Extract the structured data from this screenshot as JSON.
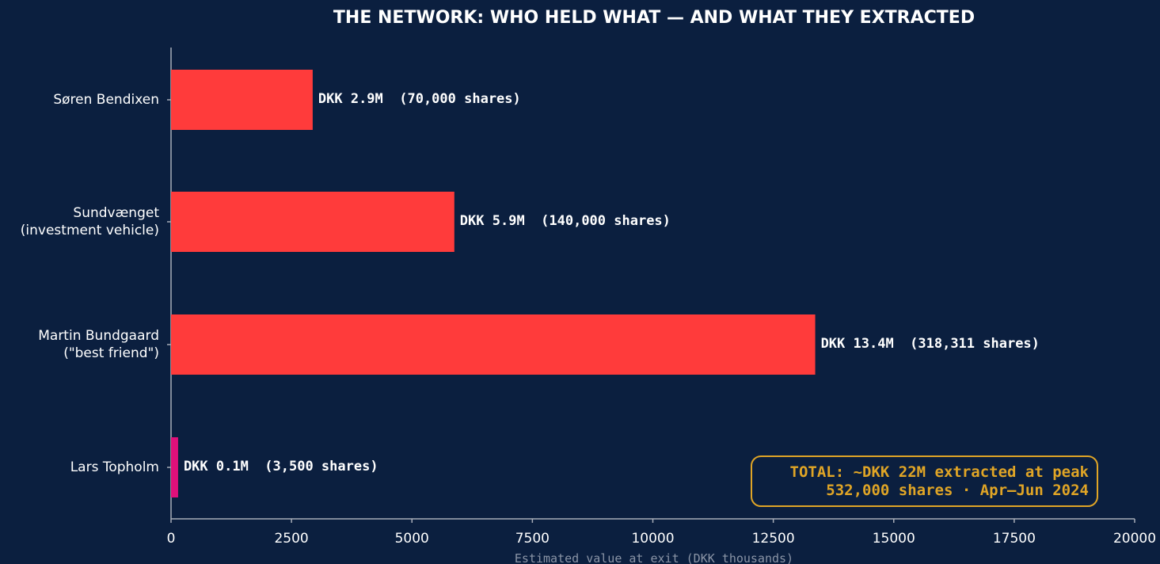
{
  "chart_data": {
    "type": "bar",
    "orientation": "horizontal",
    "title": "THE NETWORK: WHO HELD WHAT — AND WHAT THEY EXTRACTED",
    "xlabel": "Estimated value at exit (DKK thousands)",
    "ylabel": "",
    "xlim": [
      0,
      20000
    ],
    "x_ticks": [
      0,
      2500,
      5000,
      7500,
      10000,
      12500,
      15000,
      17500,
      20000
    ],
    "x_tick_labels": [
      "0",
      "2500",
      "5000",
      "7500",
      "10000",
      "12500",
      "15000",
      "17500",
      "20000"
    ],
    "grid": false,
    "categories": [
      {
        "lines": [
          "Søren Bendixen"
        ],
        "value": 2940,
        "label": "DKK 2.9M  (70,000 shares)",
        "color": "#ff3b3b"
      },
      {
        "lines": [
          "Sundvænget",
          "(investment vehicle)"
        ],
        "value": 5880,
        "label": "DKK 5.9M  (140,000 shares)",
        "color": "#ff3b3b"
      },
      {
        "lines": [
          "Martin Bundgaard",
          "(\"best friend\")"
        ],
        "value": 13370,
        "label": "DKK 13.4M  (318,311 shares)",
        "color": "#ff3b3b"
      },
      {
        "lines": [
          "Lars Topholm"
        ],
        "value": 147,
        "label": "DKK 0.1M  (3,500 shares)",
        "color": "#e0107a"
      }
    ],
    "annotation": {
      "lines": [
        "TOTAL: ~DKK 22M extracted at peak",
        "532,000 shares · Apr–Jun 2024"
      ],
      "placement": "bottom-right"
    }
  },
  "colors": {
    "background": "#0b1f3f",
    "axis": "#a8adb8",
    "text": "#ffffff",
    "annotation": "#e0a526"
  }
}
